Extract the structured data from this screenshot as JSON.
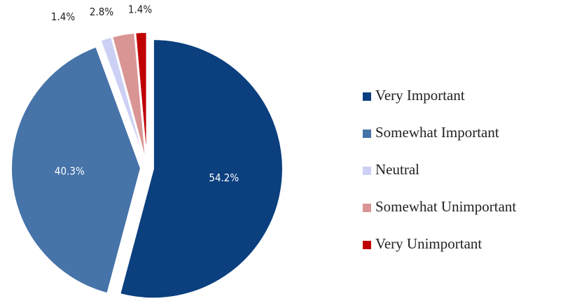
{
  "chart_data": {
    "type": "pie",
    "categories": [
      "Very Important",
      "Somewhat Important",
      "Neutral",
      "Somewhat Unimportant",
      "Very Unimportant"
    ],
    "values": [
      54.2,
      40.3,
      1.4,
      2.8,
      1.4
    ],
    "value_labels": [
      "54.2%",
      "40.3%",
      "1.4%",
      "2.8%",
      "1.4%"
    ],
    "colors": [
      "#0b3f7e",
      "#4673a8",
      "#ccd0f5",
      "#d99594",
      "#c00000"
    ],
    "legend": "right"
  }
}
